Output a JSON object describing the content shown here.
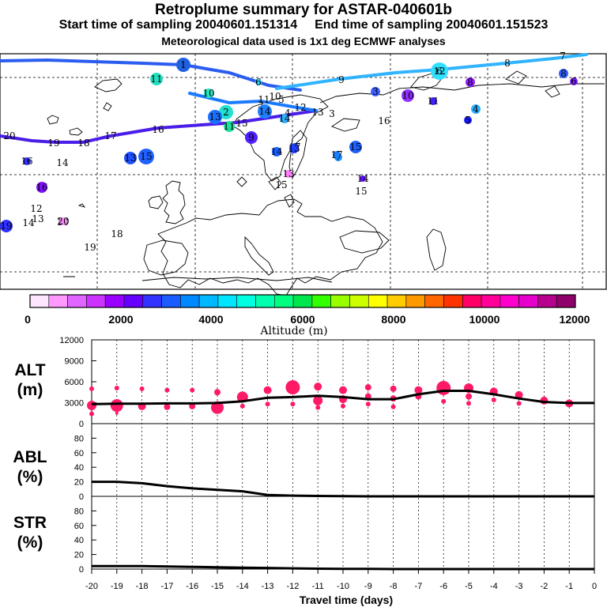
{
  "header": {
    "title": "Retroplume summary for ASTAR-040601b",
    "start_label": "Start time of sampling 20040601.151314",
    "end_label": "End time of sampling 20040601.151523",
    "met_label": "Meteorological data used is 1x1 deg ECMWF analyses"
  },
  "colorbar": {
    "colors": [
      "#ffe6ff",
      "#ff99ff",
      "#e066ff",
      "#cc33ff",
      "#9900ff",
      "#6600ff",
      "#3333ff",
      "#1a5cff",
      "#0088ff",
      "#00b8ff",
      "#00e6ff",
      "#00ffe0",
      "#00ffb0",
      "#00ff80",
      "#00e64d",
      "#33ff00",
      "#99ff00",
      "#ccff00",
      "#ffff00",
      "#ffcc00",
      "#ff9900",
      "#ff6600",
      "#ff3300",
      "#ff0066",
      "#ff0099",
      "#ff00cc",
      "#e600cc",
      "#b8008f",
      "#8f006b"
    ],
    "tick_labels": [
      "0",
      "2000",
      "4000",
      "6000",
      "8000",
      "10000",
      "12000"
    ],
    "unit_label": "Altitude (m)"
  },
  "map": {
    "markers": [
      {
        "label": "1",
        "color": "#2060e0",
        "r": 9
      },
      {
        "label": "2",
        "color": "#20e0d0",
        "r": 9
      },
      {
        "label": "3",
        "color": "#4060ff",
        "r": 6
      },
      {
        "label": "4",
        "color": "#30b0ff",
        "r": 6
      },
      {
        "label": "5",
        "color": "#1a1aff",
        "r": 5
      },
      {
        "label": "6",
        "color": "#8020ff",
        "r": 5
      },
      {
        "label": "7",
        "color": "#1a90ff",
        "r": 5
      },
      {
        "label": "8",
        "color": "#9020ff",
        "r": 6
      },
      {
        "label": "9",
        "color": "#5020ff",
        "r": 8
      },
      {
        "label": "10",
        "color": "#9030ff",
        "r": 8
      },
      {
        "label": "11",
        "color": "#20e0c0",
        "r": 8
      },
      {
        "label": "12",
        "color": "#30e0ff",
        "r": 11
      },
      {
        "label": "13",
        "color": "#1a70ff",
        "r": 9
      },
      {
        "label": "14",
        "color": "#2080ff",
        "r": 9
      },
      {
        "label": "15",
        "color": "#2060ff",
        "r": 10
      },
      {
        "label": "16",
        "color": "#8010ff",
        "r": 7
      },
      {
        "label": "17",
        "color": "#1a40ff",
        "r": 5
      },
      {
        "label": "18",
        "color": "#ff60ff",
        "r": 4
      },
      {
        "label": "19",
        "color": "#3030ff",
        "r": 8
      },
      {
        "label": "20",
        "color": "#ff90ff",
        "r": 5
      }
    ],
    "track_numbers": [
      "20",
      "19",
      "18",
      "17",
      "16",
      "15",
      "14",
      "13",
      "12",
      "11",
      "10",
      "9",
      "8",
      "7",
      "6",
      "5",
      "4",
      "3",
      "2",
      "1"
    ]
  },
  "chart_data": [
    {
      "type": "scatter",
      "title": "ALT (m)",
      "ylabel": "ALT (m)",
      "ylim": [
        0,
        12000
      ],
      "yticks": [
        0,
        3000,
        6000,
        9000,
        12000
      ],
      "x": [
        -20,
        -19,
        -18,
        -17,
        -16,
        -15,
        -14,
        -13,
        -12,
        -11,
        -10,
        -9,
        -8,
        -7,
        -6,
        -5,
        -4,
        -3,
        -2,
        -1,
        0
      ],
      "line_values": [
        2800,
        2850,
        2850,
        2900,
        2900,
        2950,
        3200,
        3700,
        3800,
        4000,
        3800,
        3500,
        3500,
        4200,
        4700,
        4700,
        4200,
        3600,
        3100,
        2950,
        2950
      ],
      "dots": [
        {
          "x": -20,
          "y": 5000,
          "r": 3
        },
        {
          "x": -20,
          "y": 2600,
          "r": 6
        },
        {
          "x": -20,
          "y": 1400,
          "r": 3
        },
        {
          "x": -19,
          "y": 5100,
          "r": 3
        },
        {
          "x": -19,
          "y": 2600,
          "r": 8
        },
        {
          "x": -19,
          "y": 1500,
          "r": 2
        },
        {
          "x": -18,
          "y": 5000,
          "r": 3
        },
        {
          "x": -18,
          "y": 2500,
          "r": 5
        },
        {
          "x": -17,
          "y": 4800,
          "r": 3
        },
        {
          "x": -17,
          "y": 2400,
          "r": 4
        },
        {
          "x": -16,
          "y": 4800,
          "r": 3
        },
        {
          "x": -16,
          "y": 2500,
          "r": 4
        },
        {
          "x": -15,
          "y": 4500,
          "r": 4
        },
        {
          "x": -15,
          "y": 2300,
          "r": 8
        },
        {
          "x": -14,
          "y": 3800,
          "r": 7
        },
        {
          "x": -14,
          "y": 2500,
          "r": 3
        },
        {
          "x": -13,
          "y": 4800,
          "r": 5
        },
        {
          "x": -13,
          "y": 2800,
          "r": 3
        },
        {
          "x": -12,
          "y": 5200,
          "r": 9
        },
        {
          "x": -12,
          "y": 2800,
          "r": 3
        },
        {
          "x": -11,
          "y": 5300,
          "r": 5
        },
        {
          "x": -11,
          "y": 3300,
          "r": 6
        },
        {
          "x": -11,
          "y": 2300,
          "r": 3
        },
        {
          "x": -10,
          "y": 4800,
          "r": 5
        },
        {
          "x": -10,
          "y": 3500,
          "r": 5
        },
        {
          "x": -10,
          "y": 2500,
          "r": 3
        },
        {
          "x": -9,
          "y": 5200,
          "r": 4
        },
        {
          "x": -9,
          "y": 3900,
          "r": 4
        },
        {
          "x": -9,
          "y": 2800,
          "r": 3
        },
        {
          "x": -8,
          "y": 5000,
          "r": 4
        },
        {
          "x": -8,
          "y": 3600,
          "r": 4
        },
        {
          "x": -8,
          "y": 2400,
          "r": 3
        },
        {
          "x": -7,
          "y": 4800,
          "r": 5
        },
        {
          "x": -7,
          "y": 3900,
          "r": 4
        },
        {
          "x": -6,
          "y": 5100,
          "r": 9
        },
        {
          "x": -6,
          "y": 3200,
          "r": 3
        },
        {
          "x": -5,
          "y": 5100,
          "r": 6
        },
        {
          "x": -5,
          "y": 3900,
          "r": 4
        },
        {
          "x": -5,
          "y": 2900,
          "r": 3
        },
        {
          "x": -4,
          "y": 4600,
          "r": 5
        },
        {
          "x": -4,
          "y": 3400,
          "r": 3
        },
        {
          "x": -3,
          "y": 4100,
          "r": 5
        },
        {
          "x": -3,
          "y": 2900,
          "r": 3
        },
        {
          "x": -2,
          "y": 3300,
          "r": 5
        },
        {
          "x": -1,
          "y": 2900,
          "r": 5
        }
      ]
    },
    {
      "type": "line",
      "title": "ABL (%)",
      "ylabel": "ABL (%)",
      "ylim": [
        0,
        100
      ],
      "yticks": [
        0,
        20,
        40,
        60,
        80
      ],
      "x": [
        -20,
        -19,
        -18,
        -17,
        -16,
        -15,
        -14,
        -13,
        -12,
        -11,
        -10,
        -9,
        -8,
        -7,
        -6,
        -5,
        -4,
        -3,
        -2,
        -1,
        0
      ],
      "values": [
        20,
        20,
        18,
        14,
        11,
        9,
        7,
        2,
        1,
        0.5,
        0.3,
        0,
        0,
        0,
        0,
        0,
        0,
        0,
        0,
        0,
        0
      ]
    },
    {
      "type": "line",
      "title": "STR (%)",
      "ylabel": "STR (%)",
      "ylim": [
        0,
        100
      ],
      "yticks": [
        0,
        20,
        40,
        60,
        80
      ],
      "xlabel": "Travel time (days)",
      "xticks": [
        -20,
        -19,
        -18,
        -17,
        -16,
        -15,
        -14,
        -13,
        -12,
        -11,
        -10,
        -9,
        -8,
        -7,
        -6,
        -5,
        -4,
        -3,
        -2,
        -1,
        0
      ],
      "x": [
        -20,
        -19,
        -18,
        -17,
        -16,
        -15,
        -14,
        -13,
        -12,
        -11,
        -10,
        -9,
        -8,
        -7,
        -6,
        -5,
        -4,
        -3,
        -2,
        -1,
        0
      ],
      "values": [
        4,
        4,
        4,
        3.5,
        3,
        2.5,
        2,
        1.5,
        1,
        0.5,
        0.3,
        0.2,
        0,
        0,
        0,
        0,
        0,
        0,
        0,
        0,
        0
      ]
    }
  ],
  "labels": {
    "alt_title": "ALT",
    "alt_unit": "(m)",
    "abl_title": "ABL",
    "abl_unit": "(%)",
    "str_title": "STR",
    "str_unit": "(%)",
    "x_axis_title": "Travel time (days)"
  }
}
